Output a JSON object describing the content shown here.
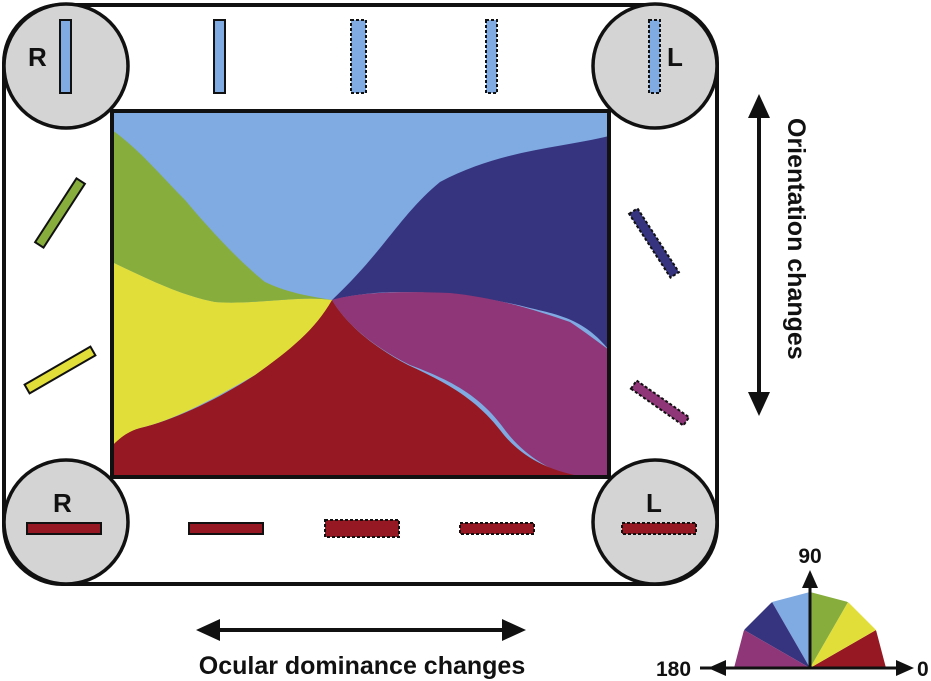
{
  "corners": {
    "top_left": {
      "eye": "R"
    },
    "top_right": {
      "eye": "L"
    },
    "bottom_left": {
      "eye": "R"
    },
    "bottom_right": {
      "eye": "L"
    }
  },
  "labels": {
    "orientation": "Orientation changes",
    "ocular": "Ocular dominance changes"
  },
  "legend": {
    "deg_0": "0",
    "deg_90": "90",
    "deg_180": "180"
  },
  "colors": {
    "light_blue": "#7faae2",
    "navy": "#36347f",
    "green": "#87ad3c",
    "yellow": "#e1de3a",
    "red": "#951822",
    "magenta": "#8e3677",
    "corner_fill": "#d4d4d4",
    "outline": "#111111"
  }
}
